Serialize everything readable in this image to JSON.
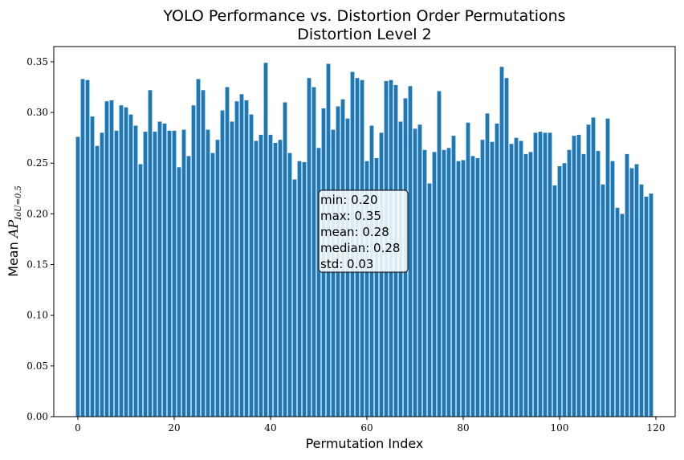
{
  "chart_data": {
    "type": "bar",
    "title": "YOLO Performance vs. Distortion Order Permutations",
    "subtitle": "Distortion Level 2",
    "xlabel": "Permutation Index",
    "ylabel_prefix": "Mean ",
    "ylabel_math": "AP",
    "ylabel_sub": "IoU=0.5",
    "xlim": [
      -5,
      124
    ],
    "ylim": [
      0,
      0.365
    ],
    "xticks": [
      0,
      20,
      40,
      60,
      80,
      100,
      120
    ],
    "xtick_labels": [
      "0",
      "20",
      "40",
      "60",
      "80",
      "100",
      "120"
    ],
    "yticks": [
      0.0,
      0.05,
      0.1,
      0.15,
      0.2,
      0.25,
      0.3,
      0.35
    ],
    "ytick_labels": [
      "0.00",
      "0.05",
      "0.10",
      "0.15",
      "0.20",
      "0.25",
      "0.30",
      "0.35"
    ],
    "grid": false,
    "bar_color": "#1f77b4",
    "x": [
      0,
      1,
      2,
      3,
      4,
      5,
      6,
      7,
      8,
      9,
      10,
      11,
      12,
      13,
      14,
      15,
      16,
      17,
      18,
      19,
      20,
      21,
      22,
      23,
      24,
      25,
      26,
      27,
      28,
      29,
      30,
      31,
      32,
      33,
      34,
      35,
      36,
      37,
      38,
      39,
      40,
      41,
      42,
      43,
      44,
      45,
      46,
      47,
      48,
      49,
      50,
      51,
      52,
      53,
      54,
      55,
      56,
      57,
      58,
      59,
      60,
      61,
      62,
      63,
      64,
      65,
      66,
      67,
      68,
      69,
      70,
      71,
      72,
      73,
      74,
      75,
      76,
      77,
      78,
      79,
      80,
      81,
      82,
      83,
      84,
      85,
      86,
      87,
      88,
      89,
      90,
      91,
      92,
      93,
      94,
      95,
      96,
      97,
      98,
      99,
      100,
      101,
      102,
      103,
      104,
      105,
      106,
      107,
      108,
      109,
      110,
      111,
      112,
      113,
      114,
      115,
      116,
      117,
      118,
      119
    ],
    "values": [
      0.276,
      0.333,
      0.332,
      0.296,
      0.267,
      0.28,
      0.311,
      0.312,
      0.282,
      0.307,
      0.305,
      0.298,
      0.287,
      0.249,
      0.281,
      0.322,
      0.281,
      0.291,
      0.289,
      0.282,
      0.282,
      0.246,
      0.283,
      0.257,
      0.307,
      0.333,
      0.322,
      0.283,
      0.26,
      0.273,
      0.302,
      0.325,
      0.291,
      0.311,
      0.318,
      0.312,
      0.298,
      0.272,
      0.278,
      0.349,
      0.278,
      0.27,
      0.273,
      0.31,
      0.26,
      0.234,
      0.252,
      0.251,
      0.334,
      0.325,
      0.265,
      0.304,
      0.348,
      0.283,
      0.306,
      0.313,
      0.294,
      0.34,
      0.334,
      0.332,
      0.252,
      0.287,
      0.255,
      0.28,
      0.331,
      0.332,
      0.327,
      0.291,
      0.314,
      0.326,
      0.284,
      0.288,
      0.263,
      0.23,
      0.261,
      0.321,
      0.263,
      0.265,
      0.277,
      0.252,
      0.253,
      0.29,
      0.257,
      0.255,
      0.273,
      0.299,
      0.271,
      0.289,
      0.345,
      0.334,
      0.269,
      0.275,
      0.272,
      0.259,
      0.261,
      0.28,
      0.281,
      0.28,
      0.28,
      0.228,
      0.247,
      0.25,
      0.263,
      0.277,
      0.278,
      0.259,
      0.288,
      0.295,
      0.262,
      0.229,
      0.294,
      0.252,
      0.206,
      0.2,
      0.259,
      0.245,
      0.249,
      0.229,
      0.217,
      0.22
    ],
    "stats_box": {
      "lines": [
        "min:  0.20",
        "max:  0.35",
        "mean:  0.28",
        "median:  0.28",
        "std:  0.03"
      ]
    }
  }
}
